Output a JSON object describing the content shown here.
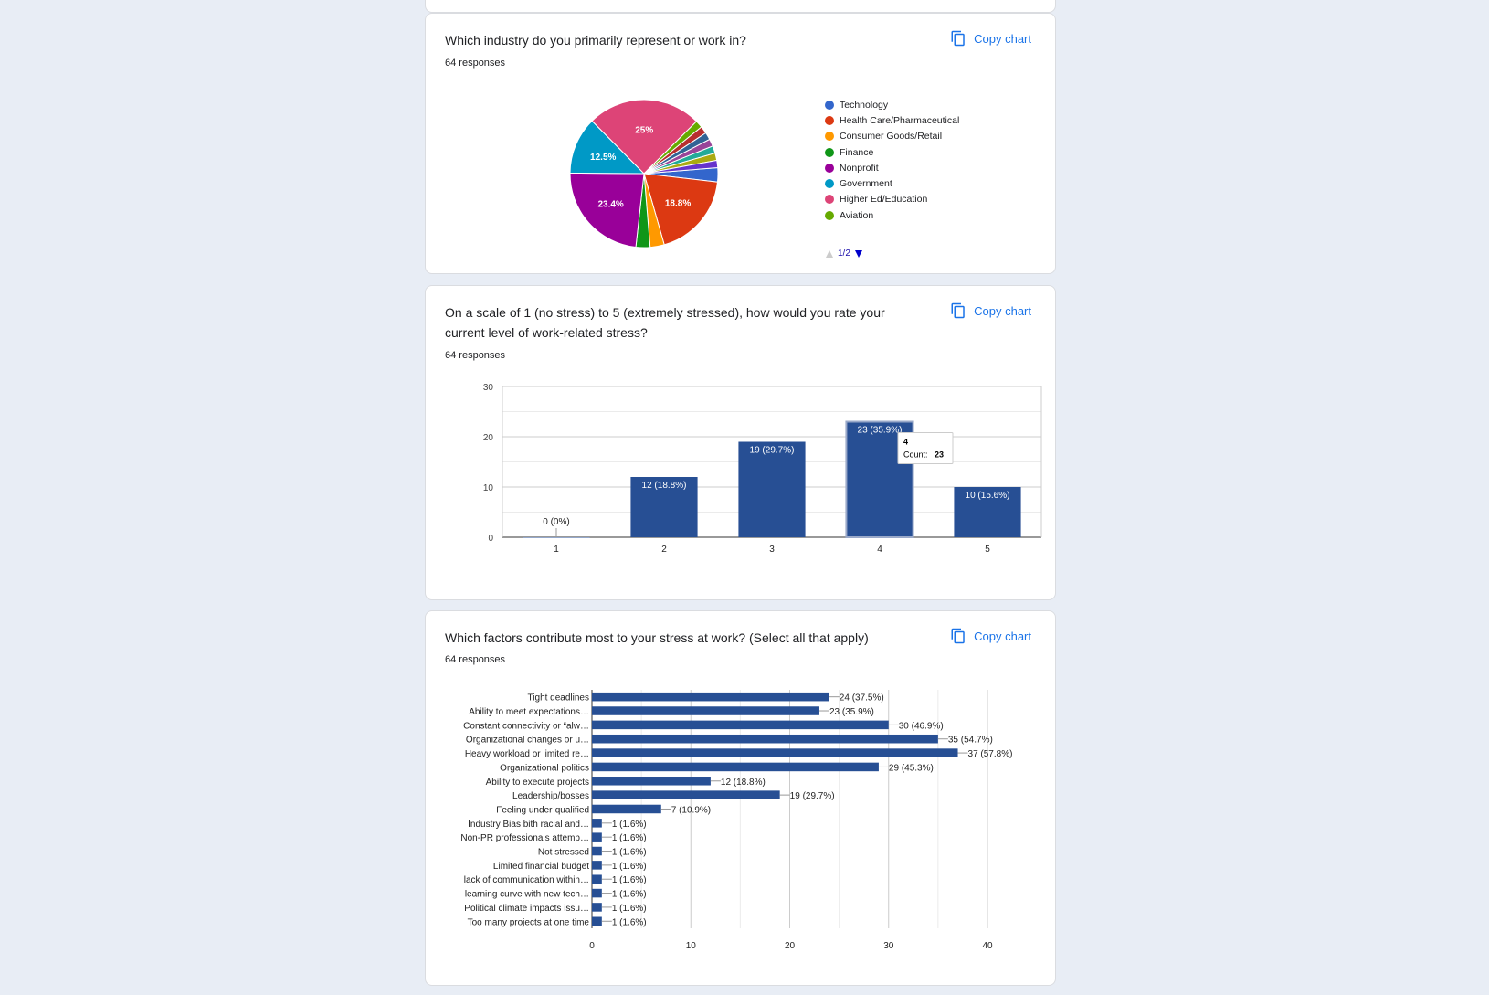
{
  "copy_label": "Copy chart",
  "cards": [
    {
      "title": "Which industry do you primarily represent or work in?",
      "responses": "64 responses",
      "chart_data": {
        "type": "pie",
        "legend": [
          {
            "label": "Technology",
            "color": "#3366cc"
          },
          {
            "label": "Health Care/Pharmaceutical",
            "color": "#dc3912"
          },
          {
            "label": "Consumer Goods/Retail",
            "color": "#ff9900"
          },
          {
            "label": "Finance",
            "color": "#109618"
          },
          {
            "label": "Nonprofit",
            "color": "#990099"
          },
          {
            "label": "Government",
            "color": "#0099c6"
          },
          {
            "label": "Higher Ed/Education",
            "color": "#dd4477"
          },
          {
            "label": "Aviation",
            "color": "#66aa00"
          }
        ],
        "slices": [
          {
            "label": "Technology",
            "value": 3.1,
            "color": "#3366cc"
          },
          {
            "label": "Health Care/Pharmaceutical",
            "value": 18.8,
            "color": "#dc3912",
            "data_label": "18.8%"
          },
          {
            "label": "Consumer Goods/Retail",
            "value": 3.1,
            "color": "#ff9900"
          },
          {
            "label": "Finance",
            "value": 3.1,
            "color": "#109618"
          },
          {
            "label": "Nonprofit",
            "value": 23.4,
            "color": "#990099",
            "data_label": "23.4%"
          },
          {
            "label": "Government",
            "value": 12.5,
            "color": "#0099c6",
            "data_label": "12.5%"
          },
          {
            "label": "Higher Ed/Education",
            "value": 25,
            "color": "#dd4477",
            "data_label": "25%"
          },
          {
            "label": "Aviation",
            "value": 1.6,
            "color": "#66aa00"
          },
          {
            "label": "",
            "value": 1.6,
            "color": "#b82e2e"
          },
          {
            "label": "",
            "value": 1.6,
            "color": "#316395"
          },
          {
            "label": "",
            "value": 1.6,
            "color": "#994499"
          },
          {
            "label": "",
            "value": 1.6,
            "color": "#22aa99"
          },
          {
            "label": "",
            "value": 1.6,
            "color": "#aaaa11"
          },
          {
            "label": "",
            "value": 1.6,
            "color": "#6633cc"
          }
        ],
        "pager": "1/2"
      }
    },
    {
      "title_line1": "On a scale of 1 (no stress) to 5 (extremely stressed), how would you rate your",
      "title_line2": "current level of work-related stress?",
      "responses": "64 responses",
      "chart_data": {
        "type": "bar",
        "categories": [
          "1",
          "2",
          "3",
          "4",
          "5"
        ],
        "values": [
          0,
          12,
          19,
          23,
          10
        ],
        "data_labels": [
          "0 (0%)",
          "12 (18.8%)",
          "19 (29.7%)",
          "23 (35.9%)",
          "10 (15.6%)"
        ],
        "ylim": [
          0,
          30
        ],
        "yticks": [
          "0",
          "10",
          "20",
          "30"
        ],
        "color": "#274f94",
        "tooltip": {
          "category": "4",
          "label": "Count:",
          "value": "23"
        }
      }
    },
    {
      "title": "Which factors contribute most to your stress at work? (Select all that apply)",
      "responses": "64 responses",
      "chart_data": {
        "type": "bar",
        "orientation": "horizontal",
        "categories": [
          "Tight deadlines",
          "Ability to meet expectations…",
          "Constant connectivity or “alw…",
          "Organizational changes or u…",
          "Heavy workload or limited re…",
          "Organizational politics",
          "Ability to execute projects",
          "Leadership/bosses",
          "Feeling under-qualified",
          "Industry Bias bith racial and…",
          "Non-PR professionals attemp…",
          "Not stressed",
          "Limited financial budget",
          "lack of communication within…",
          "learning curve with new tech…",
          "Political climate impacts issu…",
          "Too many projects at one time"
        ],
        "values": [
          24,
          23,
          30,
          35,
          37,
          29,
          12,
          19,
          7,
          1,
          1,
          1,
          1,
          1,
          1,
          1,
          1
        ],
        "data_labels": [
          "24 (37.5%)",
          "23 (35.9%)",
          "30 (46.9%)",
          "35 (54.7%)",
          "37 (57.8%)",
          "29 (45.3%)",
          "12 (18.8%)",
          "19 (29.7%)",
          "7 (10.9%)",
          "1 (1.6%)",
          "1 (1.6%)",
          "1 (1.6%)",
          "1 (1.6%)",
          "1 (1.6%)",
          "1 (1.6%)",
          "1 (1.6%)",
          "1 (1.6%)"
        ],
        "xlim": [
          0,
          40
        ],
        "xticks": [
          "0",
          "10",
          "20",
          "30",
          "40"
        ],
        "color": "#274f94"
      }
    }
  ]
}
